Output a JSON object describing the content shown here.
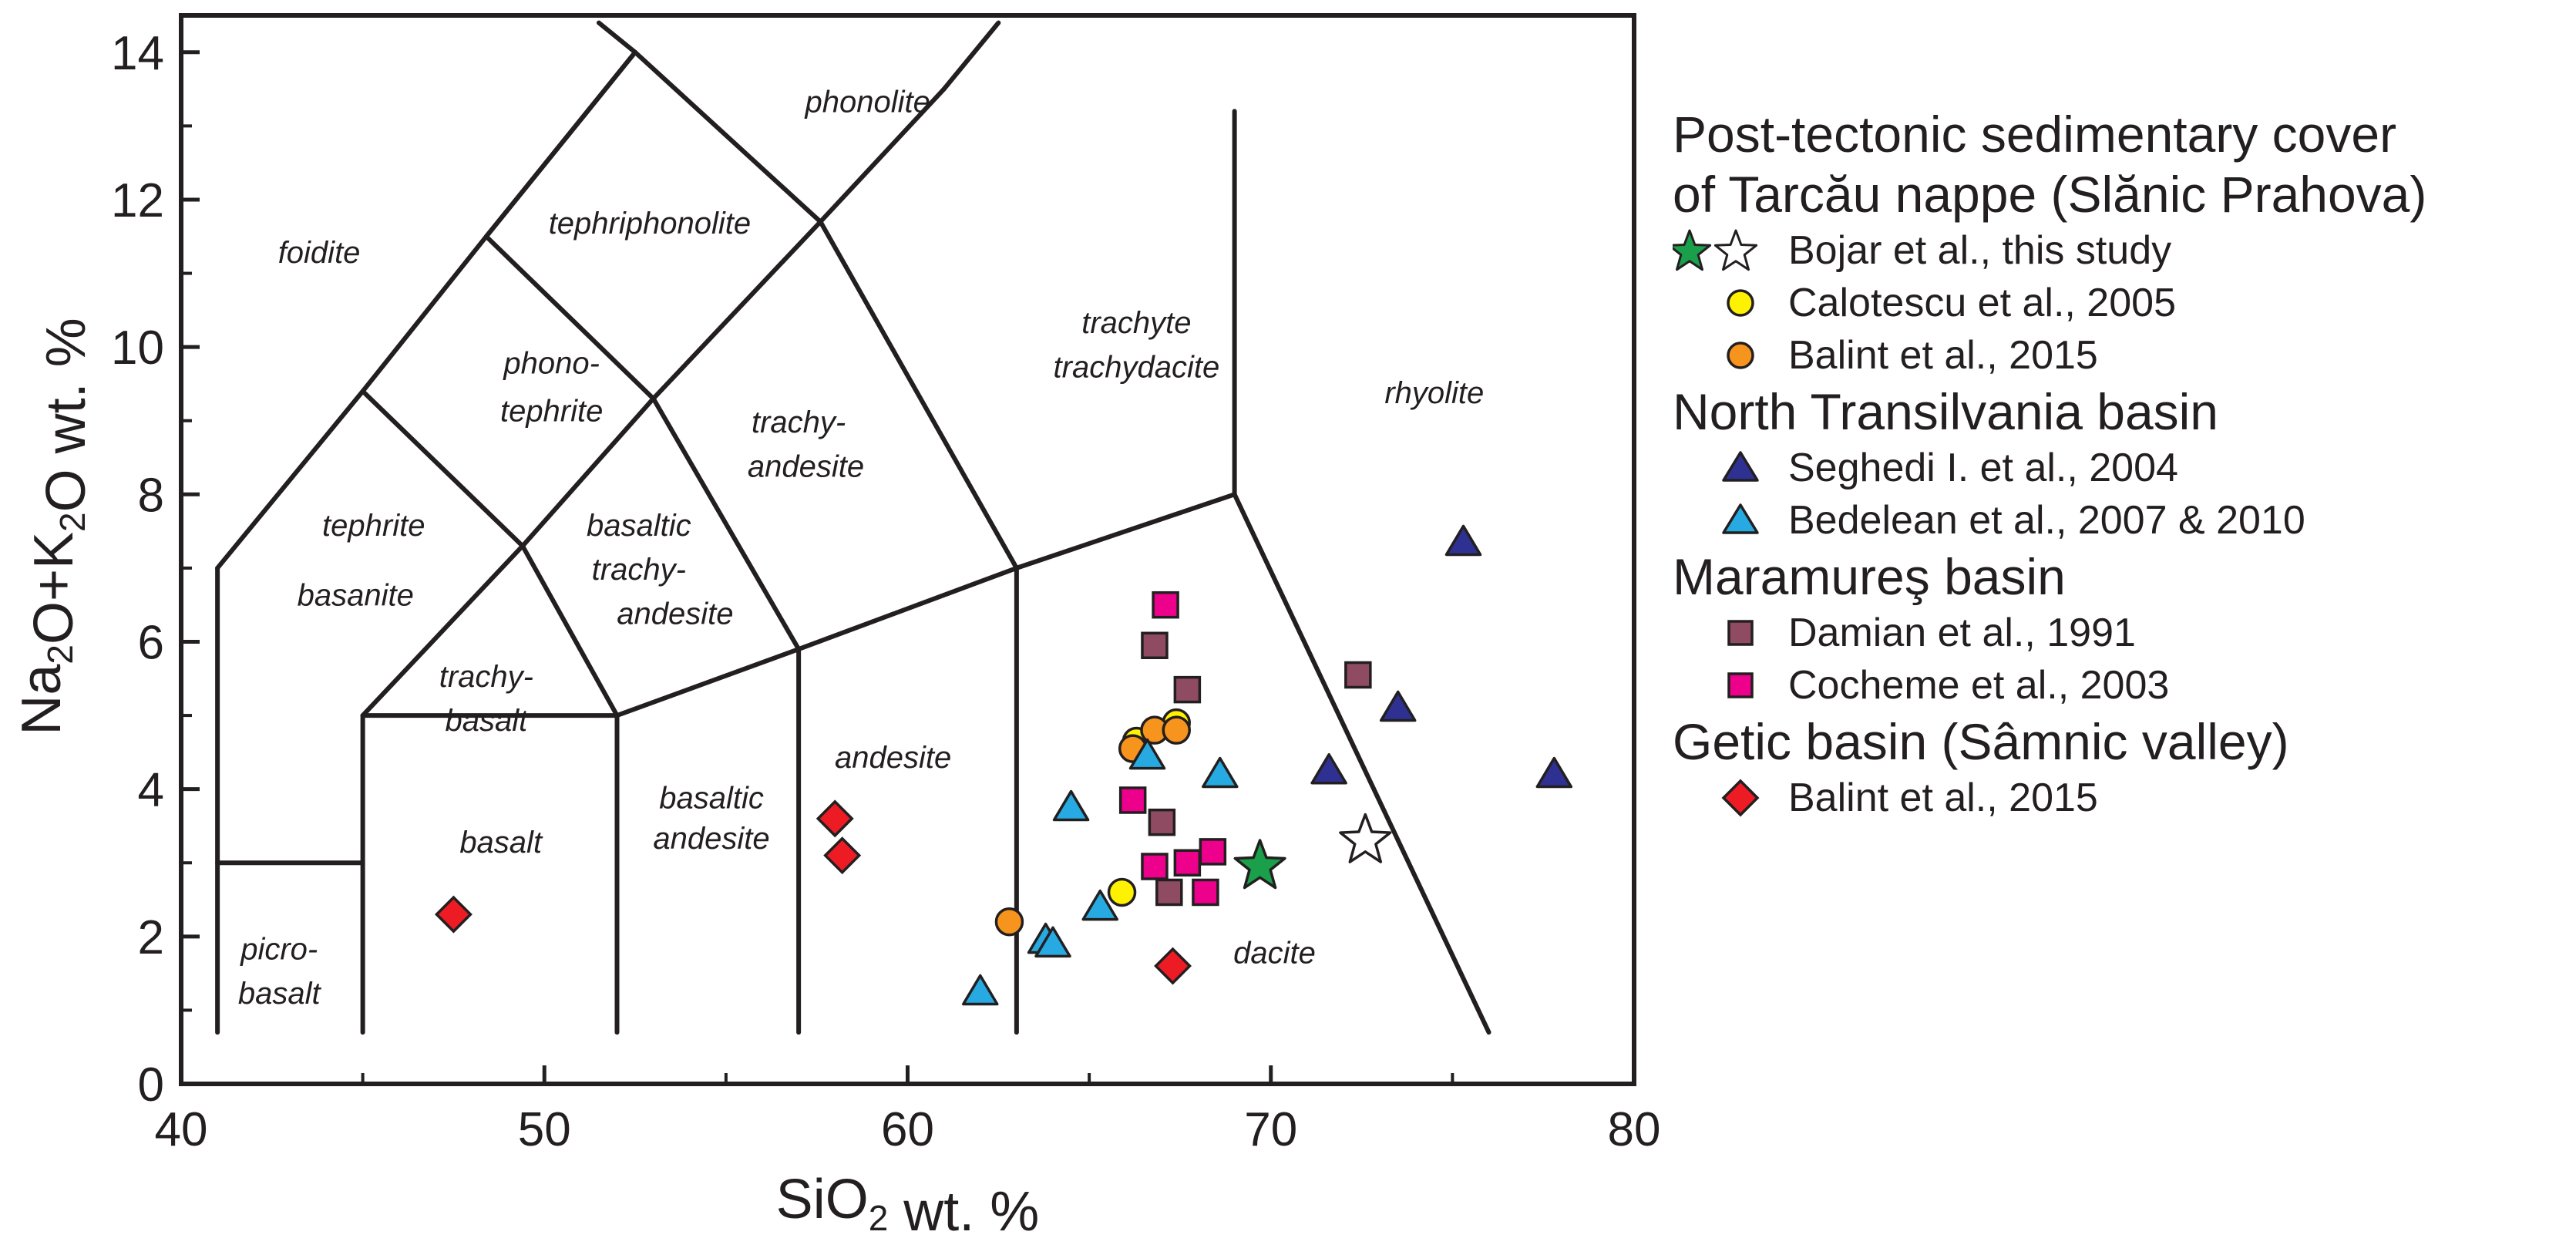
{
  "chart_data": {
    "type": "scatter",
    "title": "",
    "xlabel": "SiO2 wt. %",
    "ylabel": "Na2O+K2O wt. %",
    "xlim": [
      40,
      80
    ],
    "ylim": [
      0,
      14.5
    ],
    "xticks": [
      40,
      50,
      60,
      70,
      80
    ],
    "yticks": [
      0,
      2,
      4,
      6,
      8,
      10,
      12,
      14
    ],
    "grid": false,
    "legend_position": "right",
    "tas_fields": [
      {
        "label": "foidite",
        "x": 43.8,
        "y": 11.25
      },
      {
        "label": "phonolite",
        "x": 58.9,
        "y": 13.3
      },
      {
        "label": "tephriphonolite",
        "x": 52.9,
        "y": 11.65
      },
      {
        "label": "phono-",
        "x": 50.2,
        "y": 9.75
      },
      {
        "label": "tephrite",
        "x": 50.2,
        "y": 9.1
      },
      {
        "label": "tephrite",
        "x": 45.3,
        "y": 7.55
      },
      {
        "label": "basanite",
        "x": 44.8,
        "y": 6.6
      },
      {
        "label": "basaltic",
        "x": 52.6,
        "y": 7.55
      },
      {
        "label": "trachy-",
        "x": 52.6,
        "y": 6.95
      },
      {
        "label": "andesite",
        "x": 53.6,
        "y": 6.35
      },
      {
        "label": "trachy-",
        "x": 57.0,
        "y": 8.95
      },
      {
        "label": "andesite",
        "x": 57.2,
        "y": 8.35
      },
      {
        "label": "trachyte",
        "x": 66.3,
        "y": 10.3
      },
      {
        "label": "trachydacite",
        "x": 66.3,
        "y": 9.7
      },
      {
        "label": "rhyolite",
        "x": 74.5,
        "y": 9.35
      },
      {
        "label": "trachy-",
        "x": 48.4,
        "y": 5.5
      },
      {
        "label": "basalt",
        "x": 48.4,
        "y": 4.9
      },
      {
        "label": "basalt",
        "x": 48.8,
        "y": 3.25
      },
      {
        "label": "basaltic",
        "x": 54.6,
        "y": 3.85
      },
      {
        "label": "andesite",
        "x": 54.6,
        "y": 3.3
      },
      {
        "label": "andesite",
        "x": 59.6,
        "y": 4.4
      },
      {
        "label": "picro-",
        "x": 42.7,
        "y": 1.8
      },
      {
        "label": "basalt",
        "x": 42.7,
        "y": 1.2
      },
      {
        "label": "dacite",
        "x": 70.1,
        "y": 1.75
      }
    ],
    "series": [
      {
        "name": "Bojar et al., this study (filled)",
        "marker": "star",
        "fill": "#1aa04a",
        "points": [
          [
            69.7,
            2.95
          ]
        ]
      },
      {
        "name": "Bojar et al., this study (open)",
        "marker": "star",
        "fill": "#ffffff",
        "points": [
          [
            72.6,
            3.3
          ]
        ]
      },
      {
        "name": "Calotescu et al., 2005",
        "marker": "circle",
        "fill": "#fff200",
        "points": [
          [
            66.3,
            4.65
          ],
          [
            67.4,
            4.9
          ],
          [
            65.9,
            2.6
          ]
        ]
      },
      {
        "name": "Balint et al., 2015",
        "marker": "circle",
        "fill": "#f7941d",
        "points": [
          [
            66.2,
            4.55
          ],
          [
            66.8,
            4.8
          ],
          [
            67.4,
            4.8
          ],
          [
            62.8,
            2.2
          ]
        ]
      },
      {
        "name": "Seghedi I. et al., 2004",
        "marker": "triangle",
        "fill": "#2e3192",
        "points": [
          [
            75.3,
            7.35
          ],
          [
            73.5,
            5.1
          ],
          [
            71.6,
            4.25
          ],
          [
            77.8,
            4.2
          ]
        ]
      },
      {
        "name": "Bedelean et al., 2007 & 2010",
        "marker": "triangle",
        "fill": "#27aae1",
        "points": [
          [
            66.6,
            4.45
          ],
          [
            64.5,
            3.75
          ],
          [
            68.6,
            4.2
          ],
          [
            65.3,
            2.4
          ],
          [
            63.8,
            1.95
          ],
          [
            64.0,
            1.9
          ],
          [
            62.0,
            1.25
          ]
        ]
      },
      {
        "name": "Damian et al., 1991",
        "marker": "square",
        "fill": "#8e4b62",
        "points": [
          [
            66.8,
            5.95
          ],
          [
            67.7,
            5.35
          ],
          [
            72.4,
            5.55
          ],
          [
            67.0,
            3.55
          ],
          [
            67.2,
            2.6
          ]
        ]
      },
      {
        "name": "Cocheme et al., 2003",
        "marker": "square",
        "fill": "#ec008c",
        "points": [
          [
            67.1,
            6.5
          ],
          [
            66.2,
            3.85
          ],
          [
            66.8,
            2.95
          ],
          [
            67.7,
            3.0
          ],
          [
            68.4,
            3.15
          ],
          [
            68.2,
            2.6
          ]
        ]
      },
      {
        "name": "Balint et al., 2015",
        "marker": "diamond",
        "fill": "#ed1c24",
        "points": [
          [
            58.0,
            3.6
          ],
          [
            58.2,
            3.1
          ],
          [
            47.5,
            2.3
          ],
          [
            67.3,
            1.6
          ]
        ]
      }
    ]
  },
  "legend": {
    "groups": [
      {
        "title_lines": [
          "Post-tectonic sedimentary cover",
          "of Tarcău nappe (Slănic Prahova)"
        ],
        "items": [
          {
            "label": "Bojar et al., this study",
            "marker": "star-pair",
            "fill": "#1aa04a"
          },
          {
            "label": "Calotescu et al., 2005",
            "marker": "circle",
            "fill": "#fff200"
          },
          {
            "label": "Balint et al., 2015",
            "marker": "circle",
            "fill": "#f7941d"
          }
        ]
      },
      {
        "title_lines": [
          "North Transilvania basin"
        ],
        "items": [
          {
            "label": "Seghedi I. et al., 2004",
            "marker": "triangle",
            "fill": "#2e3192"
          },
          {
            "label": "Bedelean et al., 2007 & 2010",
            "marker": "triangle",
            "fill": "#27aae1"
          }
        ]
      },
      {
        "title_lines": [
          "Maramureş basin"
        ],
        "items": [
          {
            "label": "Damian et al., 1991",
            "marker": "square",
            "fill": "#8e4b62"
          },
          {
            "label": "Cocheme et al., 2003",
            "marker": "square",
            "fill": "#ec008c"
          }
        ]
      },
      {
        "title_lines": [
          "Getic basin (Sâmnic valley)"
        ],
        "items": [
          {
            "label": "Balint et al., 2015",
            "marker": "diamond",
            "fill": "#ed1c24"
          }
        ]
      }
    ]
  },
  "colors": {
    "ink": "#231f20",
    "background": "#ffffff"
  }
}
